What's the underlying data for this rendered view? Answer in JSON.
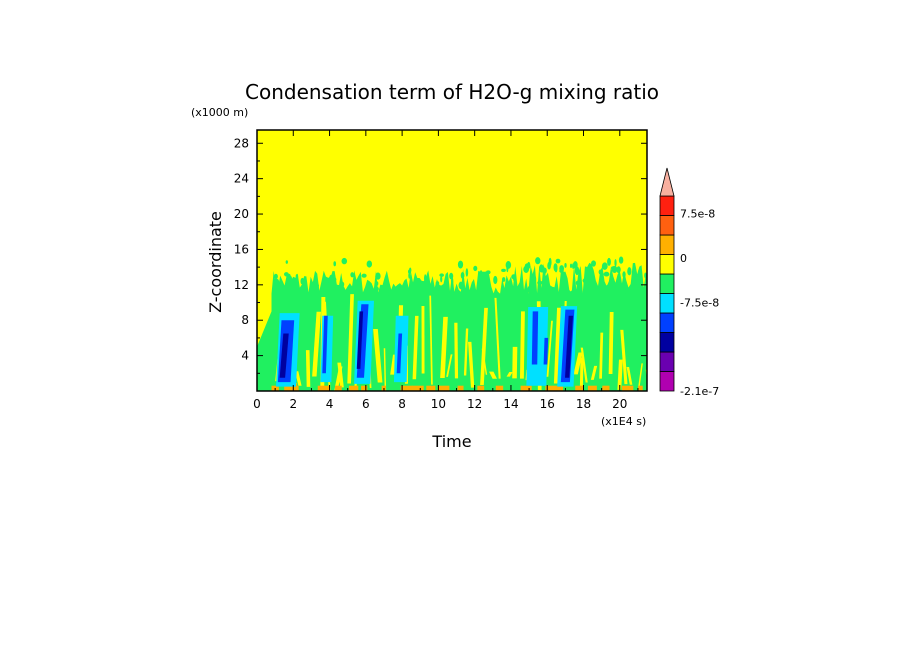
{
  "chart_data": {
    "type": "heatmap",
    "title": "Condensation term of H2O-g mixing ratio",
    "xlabel": "Time",
    "ylabel": "Z-coordinate",
    "x_unit": "(x1E4 s)",
    "y_unit": "(x1000 m)",
    "xlim": [
      0,
      21.5
    ],
    "ylim": [
      0,
      29.5
    ],
    "x_ticks": [
      "0",
      "2",
      "4",
      "6",
      "8",
      "10",
      "12",
      "14",
      "16",
      "18",
      "20"
    ],
    "x_tick_values": [
      0,
      2,
      4,
      6,
      8,
      10,
      12,
      14,
      16,
      18,
      20
    ],
    "y_ticks": [
      "4",
      "8",
      "12",
      "16",
      "20",
      "24",
      "28"
    ],
    "y_tick_values": [
      4,
      8,
      12,
      16,
      20,
      24,
      28
    ],
    "colorbar": {
      "levels": [
        "-2.1e-7",
        "-7.5e-8",
        "0",
        "7.5e-8"
      ],
      "level_positions": [
        0,
        4,
        6,
        8
      ],
      "colors": [
        "#b000b0",
        "#6a00b0",
        "#0000a0",
        "#0040ff",
        "#00e0ff",
        "#20f060",
        "#ffff00",
        "#ffb000",
        "#ff6010",
        "#ff2010",
        "#f8b0a0"
      ],
      "extend": "max"
    },
    "background_value_color": "#ffff00",
    "field_regions": [
      {
        "level": "green",
        "color": "#20f060",
        "z_top_min": 11,
        "z_top_max": 14.5,
        "x_range": [
          0.8,
          21.5
        ]
      },
      {
        "level": "cyan",
        "color": "#00e0ff",
        "x_centers": [
          1.6,
          3.8,
          5.8,
          7.9,
          15.4,
          17.0
        ]
      },
      {
        "level": "blue",
        "color": "#0040ff",
        "x_centers": [
          1.5,
          3.7,
          5.7,
          7.8,
          15.3,
          17.0
        ]
      },
      {
        "level": "dark-blue",
        "color": "#0000a0",
        "x_centers": [
          1.4,
          5.6,
          17.1
        ]
      }
    ]
  }
}
